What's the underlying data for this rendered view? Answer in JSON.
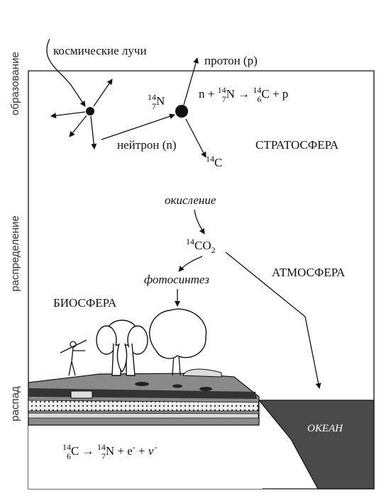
{
  "side_labels": [
    "образование",
    "распределение",
    "распад"
  ],
  "labels": {
    "cosmic_rays": "космические лучи",
    "proton": "протон (p)",
    "neutron": "нейтрон (n)",
    "stratosphere": "СТРАТОСФЕРА",
    "atmosphere": "АТМОСФЕРА",
    "biosphere": "БИОСФЕРА",
    "ocean": "ОКЕАН",
    "oxidation": "окисление",
    "photosynthesis": "фотосинтез"
  },
  "nitrogen": [
    {
      "mass": "14",
      "z": "7",
      "symbol": "N"
    }
  ],
  "reaction": [
    {
      "text": "n + "
    },
    {
      "mass": "14",
      "z": "7",
      "symbol": "N"
    },
    {
      "text": " → "
    },
    {
      "mass": "14",
      "z": "6",
      "symbol": "C"
    },
    {
      "text": " + p"
    }
  ],
  "carbon14": [
    {
      "sup": "14"
    },
    {
      "text": "C"
    }
  ],
  "co2": [
    {
      "sup": "14"
    },
    {
      "text": "CO"
    },
    {
      "sub": "2"
    }
  ],
  "decay": [
    {
      "mass": "14",
      "z": "6",
      "symbol": "C"
    },
    {
      "text": " → "
    },
    {
      "mass": "14",
      "z": "7",
      "symbol": "N"
    },
    {
      "text": " + e"
    },
    {
      "sup": "-"
    },
    {
      "text": " + "
    },
    {
      "italic": "v"
    },
    {
      "sup": "-"
    }
  ]
}
